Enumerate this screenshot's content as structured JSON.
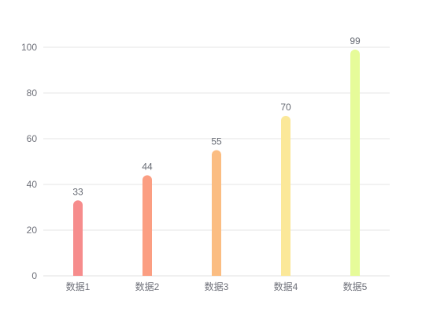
{
  "chart_data": {
    "type": "bar",
    "categories": [
      "数据1",
      "数据2",
      "数据3",
      "数据4",
      "数据5"
    ],
    "values": [
      33,
      44,
      55,
      70,
      99
    ],
    "title": "",
    "xlabel": "",
    "ylabel": "",
    "ylim": [
      0,
      100
    ],
    "yticks": [
      "0",
      "20",
      "40",
      "60",
      "80",
      "100"
    ],
    "grid": true,
    "legend": "none",
    "colors": [
      "#f68c8c",
      "#fb9e82",
      "#fbbd82",
      "#fbe899",
      "#e6fb99"
    ]
  }
}
